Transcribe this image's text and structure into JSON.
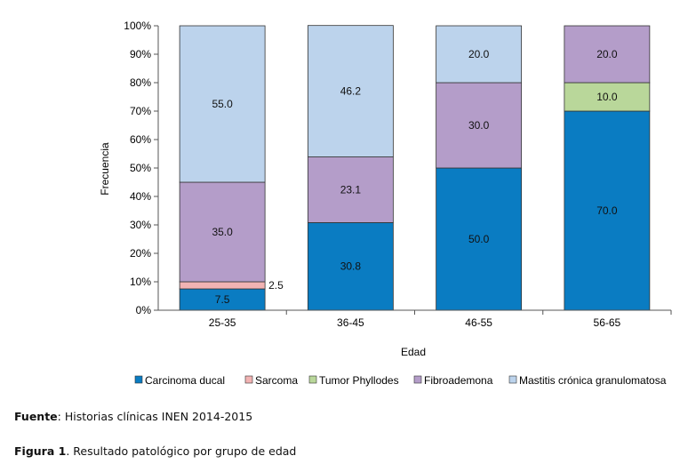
{
  "chart_data": {
    "type": "bar",
    "stacked": true,
    "percent": true,
    "categories": [
      "25-35",
      "36-45",
      "46-55",
      "56-65"
    ],
    "series": [
      {
        "name": "Carcinoma ducal",
        "color": "#0a7cc2",
        "values": [
          7.5,
          30.8,
          50.0,
          70.0
        ],
        "labels": [
          "7.5",
          "30.8",
          "50.0",
          "70.0"
        ]
      },
      {
        "name": "Sarcoma",
        "color": "#f2b3b3",
        "values": [
          2.5,
          0,
          0,
          0
        ],
        "labels": [
          "2.5",
          "",
          "",
          ""
        ]
      },
      {
        "name": "Tumor Phyllodes",
        "color": "#b9d79a",
        "values": [
          0,
          0,
          0,
          10.0
        ],
        "labels": [
          "",
          "",
          "",
          "10.0"
        ]
      },
      {
        "name": "Fibroademona",
        "color": "#b49dc9",
        "values": [
          35.0,
          23.1,
          30.0,
          20.0
        ],
        "labels": [
          "35.0",
          "23.1",
          "30.0",
          "20.0"
        ]
      },
      {
        "name": "Mastitis crónica granulomatosa",
        "color": "#bcd3ec",
        "values": [
          55.0,
          46.2,
          20.0,
          0
        ],
        "labels": [
          "55.0",
          "46.2",
          "20.0",
          ""
        ]
      }
    ],
    "xlabel": "Edad",
    "ylabel": "Frecuencia",
    "ylim": [
      0,
      100
    ],
    "yticks": [
      "0%",
      "10%",
      "20%",
      "30%",
      "40%",
      "50%",
      "60%",
      "70%",
      "80%",
      "90%",
      "100%"
    ],
    "grid": false,
    "legend": "bottom"
  },
  "captions": {
    "fuente_label": "Fuente",
    "fuente_text": ": Historias clínicas INEN 2014-2015",
    "figura_label": "Figura 1",
    "figura_text": ". Resultado patológico por grupo de edad"
  }
}
